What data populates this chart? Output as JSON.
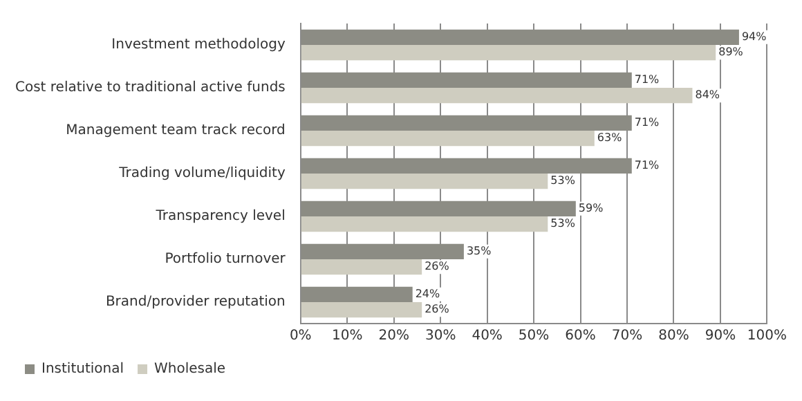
{
  "chart_data": {
    "type": "bar",
    "orientation": "horizontal",
    "categories": [
      "Investment methodology",
      "Cost relative to traditional active funds",
      "Management team track record",
      "Trading volume/liquidity",
      "Transparency level",
      "Portfolio turnover",
      "Brand/provider reputation"
    ],
    "series": [
      {
        "name": "Institutional",
        "color": "#8c8c84",
        "values": [
          94,
          71,
          71,
          71,
          59,
          35,
          24
        ],
        "value_labels": [
          "94%",
          "71%",
          "71%",
          "71%",
          "59%",
          "35%",
          "24%"
        ]
      },
      {
        "name": "Wholesale",
        "color": "#cfcdc0",
        "values": [
          89,
          84,
          63,
          53,
          53,
          26,
          26
        ],
        "value_labels": [
          "89%",
          "84%",
          "63%",
          "53%",
          "53%",
          "26%",
          "26%"
        ]
      }
    ],
    "xlim": [
      0,
      100
    ],
    "xticks": [
      {
        "value": 0,
        "label": "0%"
      },
      {
        "value": 10,
        "label": "10%"
      },
      {
        "value": 20,
        "label": "20%"
      },
      {
        "value": 30,
        "label": "30%"
      },
      {
        "value": 40,
        "label": "40%"
      },
      {
        "value": 50,
        "label": "50%"
      },
      {
        "value": 60,
        "label": "60%"
      },
      {
        "value": 70,
        "label": "70%"
      },
      {
        "value": 80,
        "label": "80%"
      },
      {
        "value": 90,
        "label": "90%"
      },
      {
        "value": 100,
        "label": "100%"
      }
    ],
    "grid": "x",
    "legend": "bottom left"
  }
}
